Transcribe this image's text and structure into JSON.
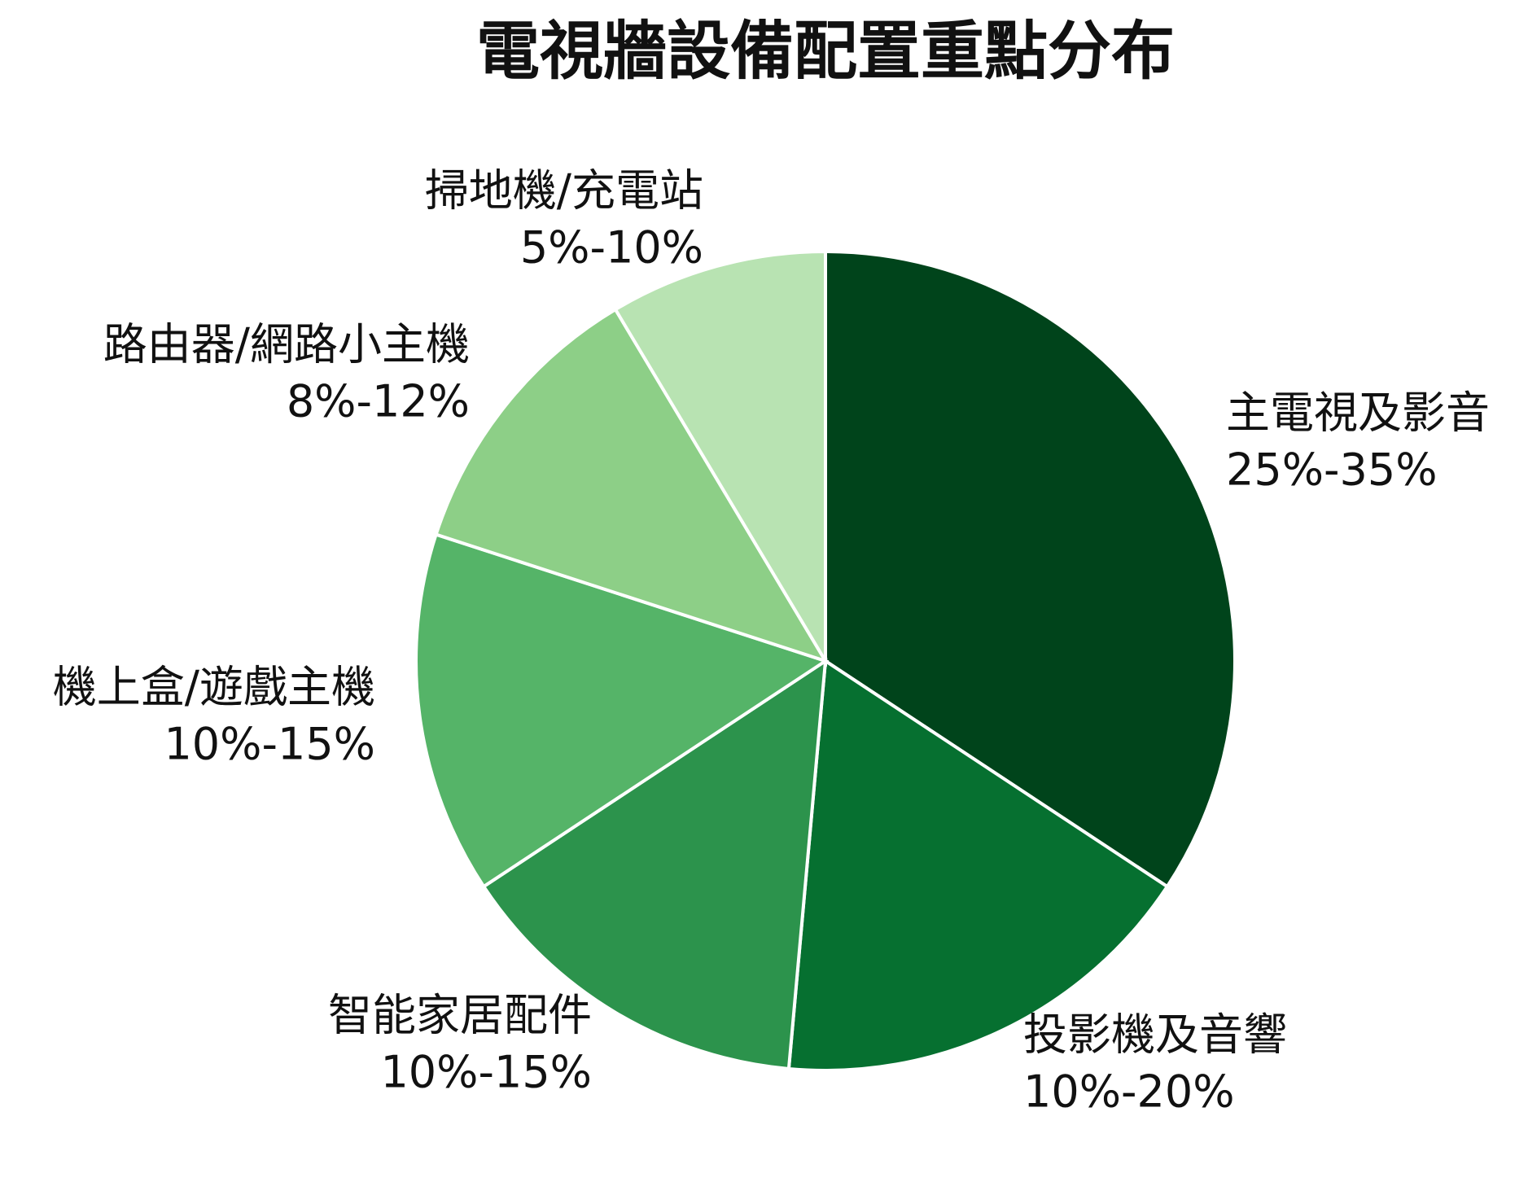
{
  "chart_data": {
    "type": "pie",
    "title": "電視牆設備配置重點分布",
    "start": "top",
    "direction": "clockwise",
    "slices": [
      {
        "name": "主電視及影音",
        "range": "25%-35%",
        "value": 30,
        "color": "#00441b"
      },
      {
        "name": "投影機及音響",
        "range": "10%-20%",
        "value": 15,
        "color": "#067030"
      },
      {
        "name": "智能家居配件",
        "range": "10%-15%",
        "value": 12.5,
        "color": "#2c934c"
      },
      {
        "name": "機上盒/遊戲主機",
        "range": "10%-15%",
        "value": 12.5,
        "color": "#55b468"
      },
      {
        "name": "路由器/網路小主機",
        "range": "8%-12%",
        "value": 10,
        "color": "#8dcf87"
      },
      {
        "name": "掃地機/充電站",
        "range": "5%-10%",
        "value": 7.5,
        "color": "#b8e3b2"
      }
    ]
  }
}
